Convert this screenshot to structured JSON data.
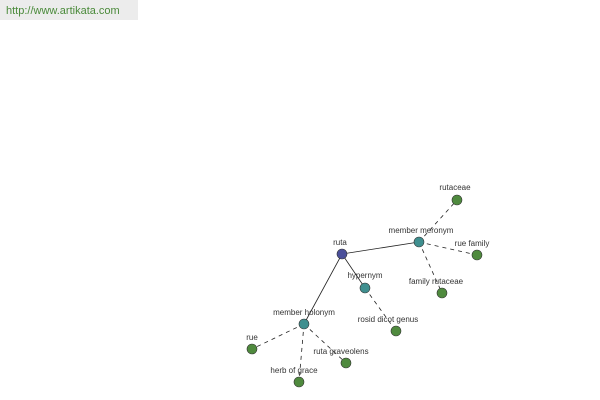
{
  "header": {
    "url": "http://www.artikata.com"
  },
  "nodes": [
    {
      "label": "ruta"
    },
    {
      "label": "member meronym"
    },
    {
      "label": "hypernym"
    },
    {
      "label": "member holonym"
    },
    {
      "label": "rutaceae"
    },
    {
      "label": "rue family"
    },
    {
      "label": "family rutaceae"
    },
    {
      "label": "rosid dicot genus"
    },
    {
      "label": "rue"
    },
    {
      "label": "herb of grace"
    },
    {
      "label": "ruta graveolens"
    }
  ]
}
